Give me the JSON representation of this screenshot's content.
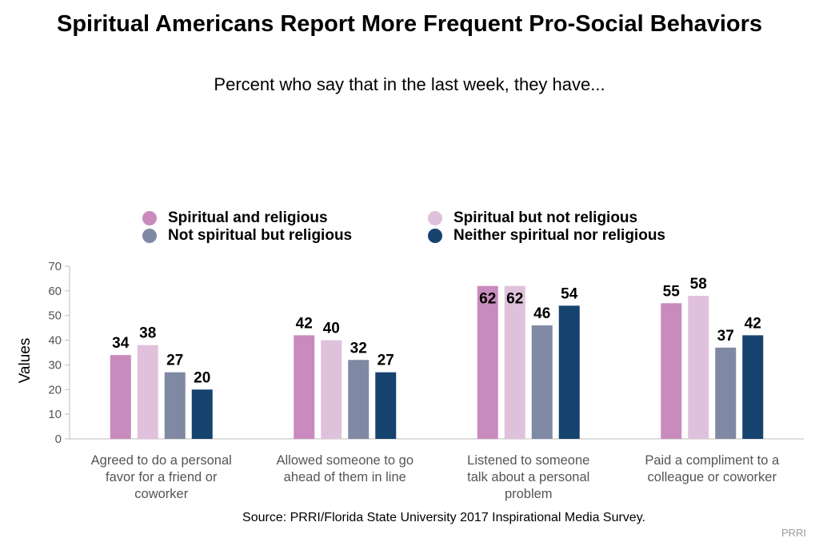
{
  "chart_data": {
    "type": "bar",
    "title": "Spiritual Americans Report More Frequent Pro-Social Behaviors",
    "subtitle": "Percent who say that in the last week, they have...",
    "ylabel": "Values",
    "ylim": [
      0,
      70
    ],
    "yticks": [
      0,
      10,
      20,
      30,
      40,
      50,
      60,
      70
    ],
    "categories": [
      [
        "Agreed to do a personal",
        "favor for a friend or",
        "coworker"
      ],
      [
        "Allowed someone to go",
        "ahead of them in line"
      ],
      [
        "Listened to someone",
        "talk about a personal",
        "problem"
      ],
      [
        "Paid a compliment to a",
        "colleague or coworker"
      ]
    ],
    "series": [
      {
        "name": "Spiritual and religious",
        "color": "#c98bbd",
        "values": [
          34,
          42,
          62,
          55
        ]
      },
      {
        "name": "Spiritual but not religious",
        "color": "#e0c1dc",
        "values": [
          38,
          40,
          62,
          58
        ]
      },
      {
        "name": "Not spiritual but religious",
        "color": "#8089a3",
        "values": [
          27,
          32,
          46,
          37
        ]
      },
      {
        "name": "Neither spiritual nor religious",
        "color": "#16426e",
        "values": [
          20,
          27,
          54,
          42
        ]
      }
    ],
    "legend_position": "top",
    "grid": false,
    "source": "Source: PRRI/Florida State University 2017 Inspirational Media Survey.",
    "brand": "PRRI"
  }
}
